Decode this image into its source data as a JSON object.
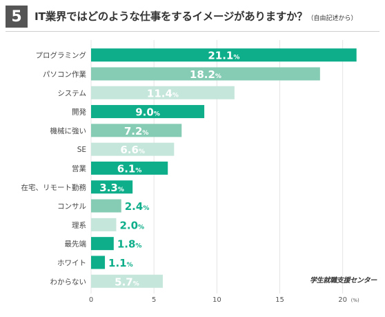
{
  "header": {
    "number": "5",
    "title": "IT業界ではどのような仕事をするイメージがありますか？",
    "subtitle": "（自由記述から）"
  },
  "brand": "学生就職支援センター",
  "chart_data": {
    "type": "bar",
    "orientation": "horizontal",
    "categories": [
      "プログラミング",
      "パソコン作業",
      "システム",
      "開発",
      "機械に強い",
      "SE",
      "営業",
      "在宅、リモート勤務",
      "コンサル",
      "理系",
      "最先端",
      "ホワイト",
      "わからない"
    ],
    "values": [
      21.1,
      18.2,
      11.4,
      9.0,
      7.2,
      6.6,
      6.1,
      3.3,
      2.4,
      2.0,
      1.8,
      1.1,
      5.7
    ],
    "value_labels": [
      "21.1",
      "18.2",
      "11.4",
      "9.0",
      "7.2",
      "6.6",
      "6.1",
      "3.3",
      "2.4",
      "2.0",
      "1.8",
      "1.1",
      "5.7"
    ],
    "value_unit": "%",
    "bar_colors": [
      "#0fae8a",
      "#86ccb5",
      "#c5e6da",
      "#0fae8a",
      "#86ccb5",
      "#c5e6da",
      "#0fae8a",
      "#0fae8a",
      "#86ccb5",
      "#c5e6da",
      "#0fae8a",
      "#0fae8a",
      "#c5e6da"
    ],
    "x_ticks": [
      0,
      5,
      10,
      15,
      20
    ],
    "xlim": [
      0,
      21.5
    ],
    "xunit": "(%)",
    "grid": true
  }
}
